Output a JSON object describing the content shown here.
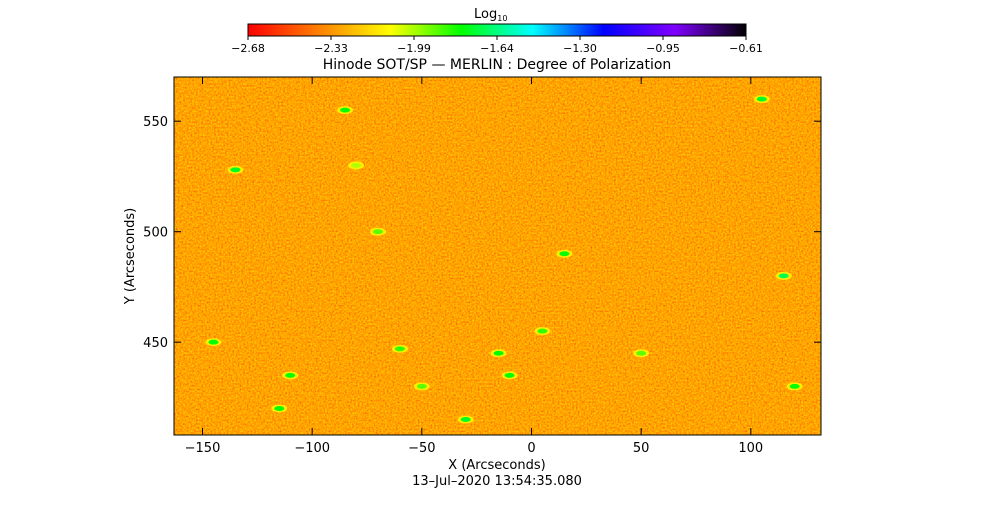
{
  "colorbar": {
    "title_main": "Log",
    "title_sub": "10",
    "ticks": [
      "-2.68",
      "-2.33",
      "-1.99",
      "-1.64",
      "-1.30",
      "-0.95",
      "-0.61"
    ],
    "range": [
      -2.68,
      -0.61
    ],
    "stops": [
      "#ff0000",
      "#ff8000",
      "#ffff00",
      "#00ff00",
      "#00ffff",
      "#0000ff",
      "#8000ff",
      "#000000"
    ]
  },
  "chart_data": {
    "type": "heatmap",
    "title": "Hinode SOT/SP — MERLIN : Degree of Polarization",
    "xlabel": "X (Arcseconds)",
    "ylabel": "Y (Arcseconds)",
    "xlim": [
      -163,
      132
    ],
    "ylim": [
      408,
      570
    ],
    "xticks": [
      -150,
      -100,
      -50,
      0,
      50,
      100
    ],
    "yticks": [
      450,
      500,
      550
    ],
    "x_tick_labels": [
      "−150",
      "−100",
      "−50",
      "0",
      "50",
      "100"
    ],
    "y_tick_labels": [
      "450",
      "500",
      "550"
    ],
    "colorbar_label": "Log10",
    "value_range": [
      -2.68,
      -0.61
    ],
    "description_of_values": "mostly red to orange with scattered yellow and green patches",
    "patches": [
      {
        "x": -135,
        "y": 528,
        "value": -1.75
      },
      {
        "x": -85,
        "y": 555,
        "value": -1.8
      },
      {
        "x": -80,
        "y": 530,
        "value": -2.0
      },
      {
        "x": -70,
        "y": 500,
        "value": -1.9
      },
      {
        "x": 15,
        "y": 490,
        "value": -1.8
      },
      {
        "x": 105,
        "y": 560,
        "value": -1.75
      },
      {
        "x": 115,
        "y": 480,
        "value": -1.7
      },
      {
        "x": -145,
        "y": 450,
        "value": -1.8
      },
      {
        "x": -110,
        "y": 435,
        "value": -1.8
      },
      {
        "x": -50,
        "y": 430,
        "value": -1.9
      },
      {
        "x": -30,
        "y": 415,
        "value": -1.75
      },
      {
        "x": -10,
        "y": 435,
        "value": -1.8
      },
      {
        "x": -15,
        "y": 445,
        "value": -1.8
      },
      {
        "x": 50,
        "y": 445,
        "value": -1.9
      },
      {
        "x": -115,
        "y": 420,
        "value": -1.8
      },
      {
        "x": 120,
        "y": 430,
        "value": -1.8
      },
      {
        "x": 5,
        "y": 455,
        "value": -1.85
      },
      {
        "x": -60,
        "y": 447,
        "value": -1.85
      }
    ]
  },
  "footer": {
    "timestamp": "13–Jul–2020 13:54:35.080"
  }
}
